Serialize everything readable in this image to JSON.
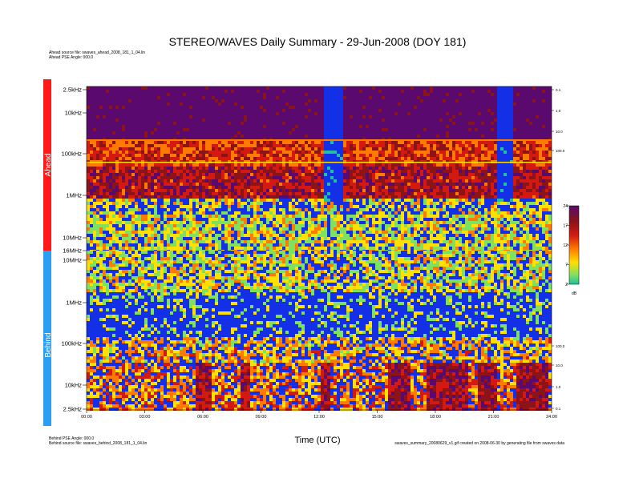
{
  "chart_data": {
    "type": "heatmap",
    "title": "STEREO/WAVES Daily Summary - 29-Jun-2008 (DOY 181)",
    "xlabel": "Time (UTC)",
    "x_ticks": [
      "00:00",
      "03:00",
      "06:00",
      "09:00",
      "12:00",
      "15:00",
      "18:00",
      "21:00",
      "24:00"
    ],
    "panels": [
      {
        "name": "Ahead",
        "color": "#ff1a1a",
        "y_ticks": [
          "2.5kHz",
          "10kHz",
          "100kHz",
          "1MHz",
          "10MHz",
          "16MHz"
        ],
        "right_ticks": [
          "0.1",
          "1.0",
          "10.0",
          "100.0"
        ]
      },
      {
        "name": "Behind",
        "color": "#2b9df4",
        "y_ticks": [
          "10MHz",
          "1MHz",
          "100kHz",
          "10kHz",
          "2.5kHz"
        ],
        "right_ticks": [
          "100.0",
          "10.0",
          "1.0",
          "0.1"
        ]
      }
    ],
    "colorbar": {
      "unit": "dB",
      "ticks": [
        "24",
        "17",
        "12",
        "7",
        "2"
      ],
      "colors": [
        "#5a0a6e",
        "#8a1418",
        "#d41a10",
        "#ff7a00",
        "#ffe000",
        "#80e060",
        "#20c0a0"
      ]
    }
  },
  "meta": {
    "ahead_lines": [
      "Ahead source file: swaves_ahead_2008_181_1_04.lin",
      "Ahead PSE Angle: 000.0"
    ],
    "behind_lines": [
      "Behind PSE Angle: 000.0",
      "Behind source file: swaves_behind_2008_181_1_04.lin"
    ],
    "file_line": "swaves_summary_20080629_v1.gif created on 2008-06-30 by generating file from swaves data"
  }
}
